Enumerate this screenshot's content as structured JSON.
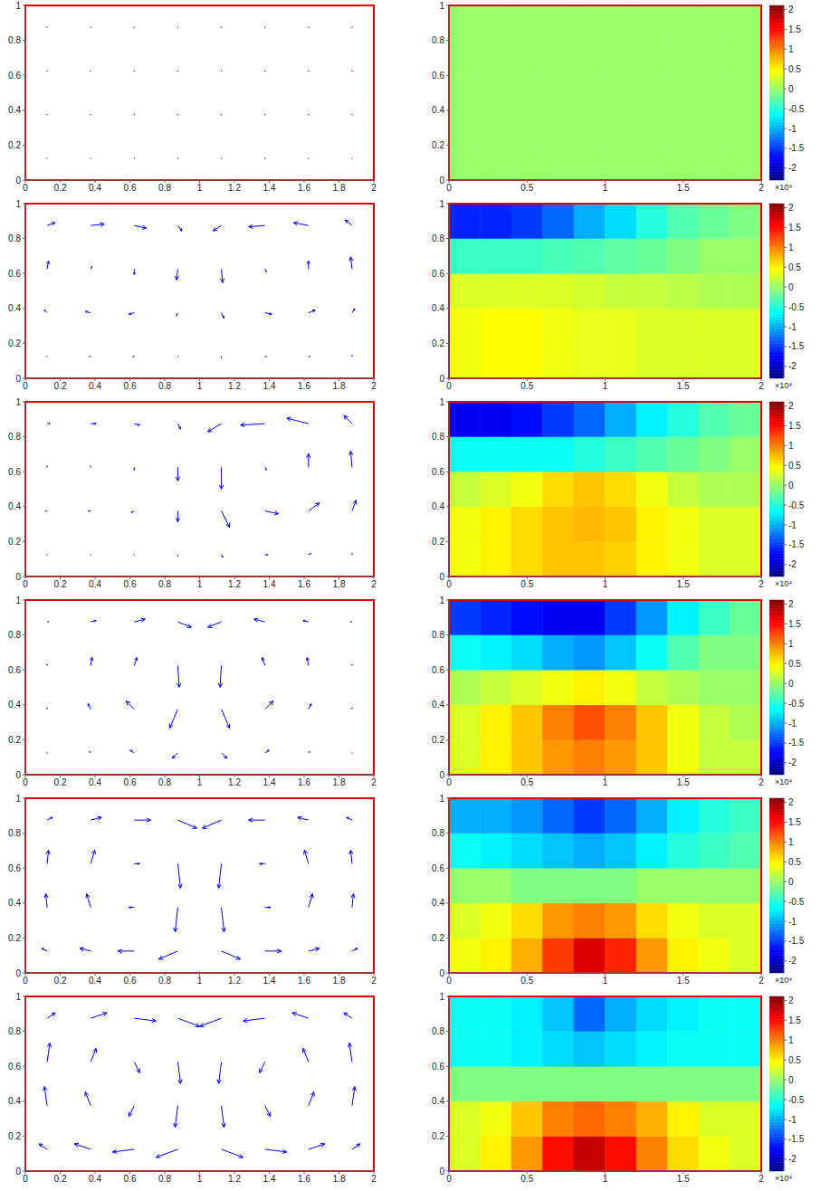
{
  "chart_data": [
    {
      "type": "quiver",
      "color": "#0000ff",
      "xlim": [
        0,
        2
      ],
      "xticks": [
        0,
        0.2,
        0.4,
        0.6,
        0.8,
        1,
        1.2,
        1.4,
        1.6,
        1.8,
        2
      ],
      "ylim": [
        0,
        1
      ],
      "yticks": [
        0,
        0.2,
        0.4,
        0.6,
        0.8,
        1
      ],
      "x": [
        0.125,
        0.375,
        0.625,
        0.875,
        1.125,
        1.375,
        1.625,
        1.875
      ],
      "y": [
        0.125,
        0.375,
        0.625,
        0.875
      ],
      "frames": [
        {
          "u": [
            [
              0,
              0,
              0,
              0,
              0,
              0,
              0,
              0
            ],
            [
              0,
              0,
              0,
              0,
              0,
              0,
              0,
              0
            ],
            [
              0,
              0,
              0,
              0,
              0,
              0,
              0,
              0
            ],
            [
              0,
              0,
              0,
              0,
              0,
              0,
              0,
              0
            ]
          ],
          "v": [
            [
              0,
              0,
              0,
              0,
              0,
              0,
              0,
              0
            ],
            [
              0,
              0,
              0,
              0,
              0,
              0,
              0,
              0
            ],
            [
              0,
              0,
              0,
              0,
              0,
              0,
              0,
              0
            ],
            [
              0,
              0,
              0,
              0,
              0,
              0,
              0,
              0
            ]
          ]
        },
        {
          "u": [
            [
              0,
              -0.05,
              -0.05,
              0,
              0,
              0.05,
              0.05,
              0
            ],
            [
              -0.1,
              -0.2,
              -0.2,
              -0.05,
              0.1,
              0.25,
              0.25,
              0.1
            ],
            [
              0.05,
              0.05,
              0,
              -0.05,
              0.05,
              0.05,
              0,
              -0.05
            ],
            [
              0.3,
              0.5,
              0.45,
              0.15,
              -0.3,
              -0.6,
              -0.55,
              -0.25
            ]
          ],
          "v": [
            [
              0,
              0,
              0,
              0,
              -0.05,
              0,
              0,
              0.05
            ],
            [
              0.1,
              0.05,
              -0.05,
              -0.1,
              -0.2,
              -0.05,
              0.1,
              0.15
            ],
            [
              0.3,
              0.1,
              -0.2,
              -0.4,
              -0.5,
              -0.1,
              0.3,
              0.45
            ],
            [
              0.1,
              0.05,
              -0.1,
              -0.2,
              -0.2,
              -0.05,
              0.1,
              0.2
            ]
          ]
        },
        {
          "u": [
            [
              0,
              0,
              0,
              0,
              0.05,
              0.1,
              0.1,
              0
            ],
            [
              -0.05,
              -0.1,
              -0.1,
              0,
              0.3,
              0.5,
              0.4,
              0.15
            ],
            [
              0,
              0,
              0,
              0,
              0,
              0.05,
              0,
              -0.05
            ],
            [
              0.1,
              0.2,
              0.2,
              0.1,
              -0.5,
              -0.9,
              -0.8,
              -0.3
            ]
          ],
          "v": [
            [
              0,
              0,
              0,
              -0.05,
              -0.1,
              0,
              0.05,
              0.05
            ],
            [
              0,
              0,
              -0.05,
              -0.4,
              -0.6,
              -0.1,
              0.3,
              0.4
            ],
            [
              0.05,
              0.05,
              -0.1,
              -0.5,
              -0.8,
              -0.1,
              0.5,
              0.6
            ],
            [
              0,
              0,
              -0.05,
              -0.2,
              -0.3,
              -0.05,
              0.2,
              0.3
            ]
          ]
        },
        {
          "u": [
            [
              0,
              -0.05,
              -0.15,
              -0.2,
              0.2,
              0.15,
              0.05,
              0
            ],
            [
              0,
              -0.1,
              -0.3,
              -0.3,
              0.3,
              0.3,
              0.1,
              0
            ],
            [
              0,
              0.05,
              0.1,
              0.05,
              -0.05,
              -0.1,
              -0.05,
              0
            ],
            [
              0.05,
              0.2,
              0.4,
              0.5,
              -0.5,
              -0.4,
              -0.2,
              -0.05
            ]
          ],
          "v": [
            [
              0,
              0.05,
              0.1,
              -0.2,
              -0.2,
              0.1,
              0.05,
              0
            ],
            [
              0.05,
              0.2,
              0.3,
              -0.7,
              -0.7,
              0.3,
              0.2,
              0.05
            ],
            [
              0.05,
              0.3,
              0.3,
              -0.8,
              -0.8,
              0.3,
              0.3,
              0.05
            ],
            [
              0,
              0.05,
              0.1,
              -0.2,
              -0.2,
              0.1,
              0.05,
              0
            ]
          ]
        },
        {
          "u": [
            [
              -0.2,
              -0.4,
              -0.6,
              -0.7,
              0.7,
              0.6,
              0.4,
              0.2
            ],
            [
              -0.05,
              -0.15,
              -0.2,
              -0.1,
              0.1,
              0.2,
              0.15,
              0.05
            ],
            [
              0.05,
              0.15,
              0.2,
              0.1,
              -0.1,
              -0.2,
              -0.15,
              -0.05
            ],
            [
              0.2,
              0.4,
              0.6,
              0.7,
              -0.7,
              -0.6,
              -0.4,
              -0.2
            ]
          ],
          "v": [
            [
              0.1,
              0.1,
              0,
              -0.3,
              -0.3,
              0,
              0.1,
              0.1
            ],
            [
              0.5,
              0.5,
              0,
              -0.9,
              -0.9,
              0,
              0.5,
              0.5
            ],
            [
              0.5,
              0.5,
              0,
              -0.9,
              -0.9,
              0,
              0.5,
              0.5
            ],
            [
              0.1,
              0.1,
              0,
              -0.3,
              -0.3,
              0,
              0.1,
              0.1
            ]
          ]
        },
        {
          "u": [
            [
              -0.3,
              -0.6,
              -0.8,
              -0.8,
              0.8,
              0.8,
              0.6,
              0.3
            ],
            [
              -0.1,
              -0.2,
              -0.2,
              -0.1,
              0.1,
              0.2,
              0.2,
              0.1
            ],
            [
              0.1,
              0.2,
              0.2,
              0.1,
              -0.1,
              -0.2,
              -0.2,
              -0.1
            ],
            [
              0.3,
              0.6,
              0.8,
              0.8,
              -0.8,
              -0.8,
              -0.6,
              -0.3
            ]
          ],
          "v": [
            [
              0.2,
              0.2,
              -0.1,
              -0.3,
              -0.3,
              -0.1,
              0.2,
              0.2
            ],
            [
              0.7,
              0.5,
              -0.4,
              -0.8,
              -0.8,
              -0.4,
              0.5,
              0.7
            ],
            [
              0.7,
              0.5,
              -0.4,
              -0.8,
              -0.8,
              -0.4,
              0.5,
              0.7
            ],
            [
              0.2,
              0.2,
              -0.1,
              -0.3,
              -0.3,
              -0.1,
              0.2,
              0.2
            ]
          ]
        }
      ]
    },
    {
      "type": "heatmap",
      "xlim": [
        0,
        2
      ],
      "xticks": [
        0,
        0.5,
        1,
        1.5,
        2
      ],
      "ylim": [
        0,
        1
      ],
      "yticks": [
        0,
        0.2,
        0.4,
        0.6,
        0.8,
        1
      ],
      "x_edges": [
        0,
        0.2,
        0.4,
        0.6,
        0.8,
        1,
        1.2,
        1.4,
        1.6,
        1.8,
        2
      ],
      "y_edges": [
        0,
        0.2,
        0.4,
        0.6,
        0.8,
        1
      ],
      "colorbar": {
        "range": [
          -2.3,
          2.1
        ],
        "ticks": [
          -2,
          -1.5,
          -1,
          -0.5,
          0,
          0.5,
          1,
          1.5,
          2
        ],
        "multiplier_label": "×10⁴"
      },
      "frames": [
        {
          "cells": [
            [
              0,
              0,
              0,
              0,
              0,
              0,
              0,
              0,
              0,
              0
            ],
            [
              0,
              0,
              0,
              0,
              0,
              0,
              0,
              0,
              0,
              0
            ],
            [
              0,
              0,
              0,
              0,
              0,
              0,
              0,
              0,
              0,
              0
            ],
            [
              0,
              0,
              0,
              0,
              0,
              0,
              0,
              0,
              0,
              0
            ],
            [
              0,
              0,
              0,
              0,
              0,
              0,
              0,
              0,
              0,
              0
            ]
          ]
        },
        {
          "cells": [
            [
              0.4,
              0.45,
              0.45,
              0.4,
              0.35,
              0.35,
              0.3,
              0.3,
              0.3,
              0.3
            ],
            [
              0.4,
              0.45,
              0.45,
              0.4,
              0.35,
              0.35,
              0.3,
              0.3,
              0.3,
              0.3
            ],
            [
              0.3,
              0.3,
              0.3,
              0.3,
              0.25,
              0.2,
              0.2,
              0.15,
              0.1,
              0.1
            ],
            [
              -0.4,
              -0.4,
              -0.4,
              -0.35,
              -0.3,
              -0.25,
              -0.2,
              -0.1,
              0,
              0
            ],
            [
              -1.6,
              -1.6,
              -1.5,
              -1.3,
              -1.0,
              -0.8,
              -0.5,
              -0.3,
              -0.2,
              -0.1
            ]
          ]
        },
        {
          "cells": [
            [
              0.4,
              0.5,
              0.6,
              0.7,
              0.7,
              0.65,
              0.5,
              0.4,
              0.3,
              0.3
            ],
            [
              0.4,
              0.5,
              0.6,
              0.7,
              0.75,
              0.7,
              0.5,
              0.4,
              0.3,
              0.3
            ],
            [
              0.2,
              0.3,
              0.4,
              0.6,
              0.7,
              0.6,
              0.4,
              0.2,
              0.1,
              0.1
            ],
            [
              -0.6,
              -0.6,
              -0.6,
              -0.6,
              -0.5,
              -0.4,
              -0.3,
              -0.2,
              -0.1,
              0
            ],
            [
              -1.8,
              -1.8,
              -1.7,
              -1.5,
              -1.3,
              -1.0,
              -0.7,
              -0.5,
              -0.3,
              -0.2
            ]
          ]
        },
        {
          "cells": [
            [
              0.3,
              0.5,
              0.7,
              0.9,
              1.0,
              0.9,
              0.7,
              0.4,
              0.2,
              0.2
            ],
            [
              0.3,
              0.5,
              0.7,
              1.0,
              1.2,
              1.0,
              0.7,
              0.4,
              0.2,
              0.1
            ],
            [
              0.1,
              0.2,
              0.3,
              0.4,
              0.5,
              0.4,
              0.2,
              0.1,
              0,
              0
            ],
            [
              -0.6,
              -0.7,
              -0.8,
              -1.0,
              -1.1,
              -0.9,
              -0.6,
              -0.3,
              -0.1,
              -0.1
            ],
            [
              -1.5,
              -1.6,
              -1.7,
              -1.8,
              -1.8,
              -1.5,
              -1.1,
              -0.7,
              -0.4,
              -0.2
            ]
          ]
        },
        {
          "cells": [
            [
              0.4,
              0.5,
              0.8,
              1.3,
              1.7,
              1.4,
              0.9,
              0.5,
              0.4,
              0.3
            ],
            [
              0.3,
              0.4,
              0.6,
              0.9,
              1.0,
              0.9,
              0.6,
              0.4,
              0.3,
              0.3
            ],
            [
              0,
              0,
              -0.1,
              -0.1,
              -0.1,
              -0.1,
              0,
              0,
              0,
              0
            ],
            [
              -0.6,
              -0.7,
              -0.8,
              -0.9,
              -1.0,
              -0.9,
              -0.7,
              -0.5,
              -0.4,
              -0.3
            ],
            [
              -1.0,
              -1.0,
              -1.1,
              -1.3,
              -1.5,
              -1.3,
              -1.0,
              -0.7,
              -0.5,
              -0.4
            ]
          ]
        },
        {
          "cells": [
            [
              0.3,
              0.5,
              0.9,
              1.5,
              1.8,
              1.5,
              1.0,
              0.6,
              0.4,
              0.3
            ],
            [
              0.3,
              0.4,
              0.7,
              1.0,
              1.1,
              1.0,
              0.8,
              0.5,
              0.3,
              0.3
            ],
            [
              -0.1,
              -0.1,
              -0.1,
              -0.1,
              -0.1,
              -0.1,
              -0.1,
              -0.1,
              -0.1,
              -0.1
            ],
            [
              -0.6,
              -0.6,
              -0.7,
              -0.8,
              -0.9,
              -0.8,
              -0.7,
              -0.6,
              -0.6,
              -0.6
            ],
            [
              -0.6,
              -0.6,
              -0.7,
              -0.9,
              -1.3,
              -1.0,
              -0.8,
              -0.7,
              -0.6,
              -0.6
            ]
          ]
        }
      ]
    }
  ]
}
